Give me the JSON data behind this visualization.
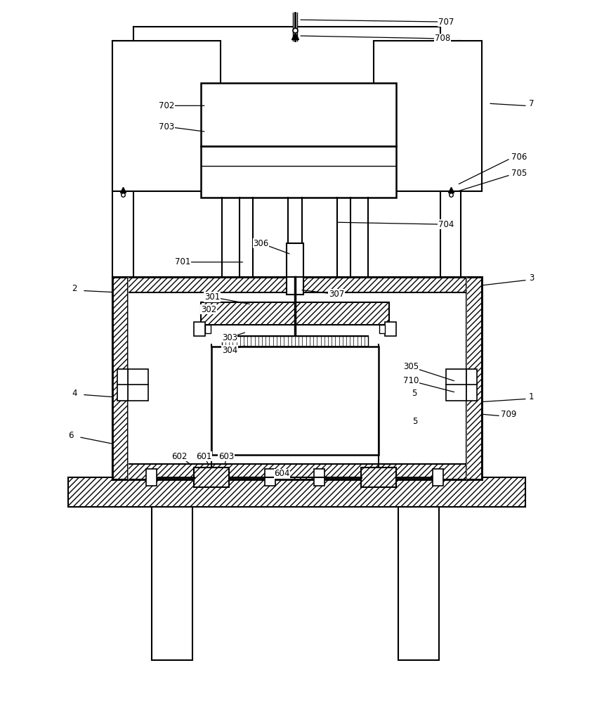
{
  "bg_color": "#ffffff",
  "line_color": "#000000",
  "fig_width": 8.4,
  "fig_height": 10.0,
  "dpi": 100
}
